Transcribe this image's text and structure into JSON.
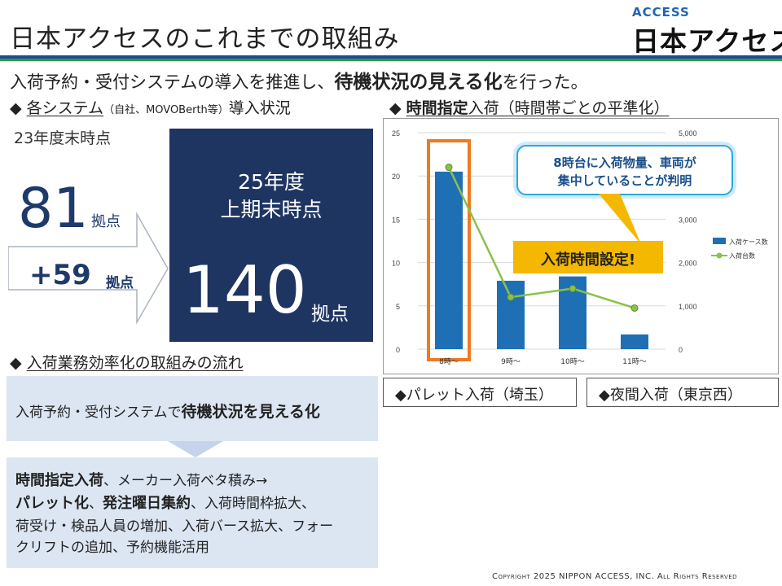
{
  "header": {
    "title": "日本アクセスのこれまでの取組み",
    "logo_sub": "ACCESS",
    "logo_main": "日本アクセス"
  },
  "lead": {
    "before": "入荷予約・受付システムの導入を推進し、",
    "bold": "待機状況の見える化",
    "after": "を行った。"
  },
  "section_systems": {
    "diamond": "◆",
    "title": "各システム",
    "paren": "（自社、MOVOBerth等）",
    "suffix": "導入状況"
  },
  "stats": {
    "fy23_label": "23年度末時点",
    "fy23_value": "81",
    "fy23_unit": "拠点",
    "increase_value": "+59",
    "increase_unit": "拠点",
    "fy25_label_1": "25年度",
    "fy25_label_2": "上期末時点",
    "fy25_value": "140",
    "fy25_unit": "拠点"
  },
  "section_time": {
    "diamond": "◆",
    "bold": "時間指定",
    "rest": "入荷（時間帯ごとの平準化）"
  },
  "section_flow": {
    "diamond": "◆",
    "title": "入荷業務効率化の取組みの流れ"
  },
  "flow": {
    "step1_prefix": "入荷予約・受付システムで",
    "step1_bold": "待機状況を見える化",
    "step2_line1_bold": "時間指定入荷",
    "step2_line1_rest": "、メーカー入荷ベタ積み→",
    "step2_line2_bold1": "パレット化",
    "step2_line2_sep": "、",
    "step2_line2_bold2": "発注曜日集約",
    "step2_line2_rest": "、入荷時間枠拡大、",
    "step2_line3": "荷受け・検品人員の増加、入荷バース拡大、フォー",
    "step2_line4": "クリフトの追加、予約機能活用"
  },
  "callout": {
    "line1": "8時台に入荷物量、車両が",
    "line2": "集中していることが判明"
  },
  "set_label": "入荷時間設定!",
  "tags": {
    "left": "◆パレット入荷（埼玉）",
    "right": "◆夜間入荷（東京西）"
  },
  "copyright": "Copyright 2025 NIPPON ACCESS, INC. All Rights Reserved",
  "colors": {
    "navy": "#1e3562",
    "bar": "#1f6fb5",
    "line": "#8cc04b",
    "highlight": "#ee7a22",
    "callout_border": "#29a8e0",
    "set_box": "#f5b800"
  },
  "chart_data": {
    "type": "bar",
    "categories": [
      "8時～",
      "9時～",
      "10時～",
      "11時～"
    ],
    "series": [
      {
        "name": "入荷ケース数",
        "type": "bar",
        "axis": "left",
        "values": [
          20.5,
          7.9,
          8.4,
          1.7
        ]
      },
      {
        "name": "入荷台数",
        "type": "line",
        "axis": "right",
        "values": [
          4200,
          1200,
          1400,
          950
        ]
      }
    ],
    "y_left": {
      "ylim": [
        0,
        25
      ],
      "ticks": [
        "0",
        "5",
        "10",
        "15",
        "20",
        "25"
      ]
    },
    "y_right": {
      "ylim": [
        0,
        5000
      ],
      "ticks": [
        "0",
        "1,000",
        "2,000",
        "3,000",
        "4,000",
        "5,000"
      ]
    },
    "highlight_category": "8時～",
    "legend_position": "right",
    "grid": true
  }
}
